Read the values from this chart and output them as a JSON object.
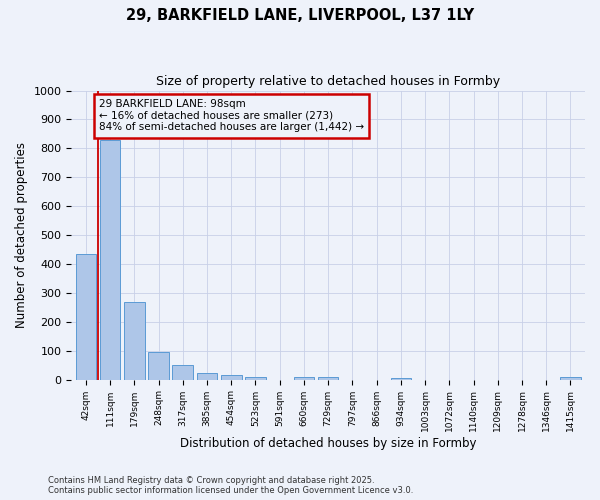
{
  "title": "29, BARKFIELD LANE, LIVERPOOL, L37 1LY",
  "subtitle": "Size of property relative to detached houses in Formby",
  "xlabel": "Distribution of detached houses by size in Formby",
  "ylabel": "Number of detached properties",
  "categories": [
    "42sqm",
    "111sqm",
    "179sqm",
    "248sqm",
    "317sqm",
    "385sqm",
    "454sqm",
    "523sqm",
    "591sqm",
    "660sqm",
    "729sqm",
    "797sqm",
    "866sqm",
    "934sqm",
    "1003sqm",
    "1072sqm",
    "1140sqm",
    "1209sqm",
    "1278sqm",
    "1346sqm",
    "1415sqm"
  ],
  "values": [
    435,
    830,
    270,
    95,
    50,
    22,
    15,
    10,
    0,
    10,
    10,
    0,
    0,
    5,
    0,
    0,
    0,
    0,
    0,
    0,
    8
  ],
  "bar_color": "#aec6e8",
  "bar_edge_color": "#5b9bd5",
  "vline_color": "#cc0000",
  "annotation_text": "29 BARKFIELD LANE: 98sqm\n← 16% of detached houses are smaller (273)\n84% of semi-detached houses are larger (1,442) →",
  "annotation_box_color": "#cc0000",
  "ylim": [
    0,
    1000
  ],
  "yticks": [
    0,
    100,
    200,
    300,
    400,
    500,
    600,
    700,
    800,
    900,
    1000
  ],
  "background_color": "#eef2fa",
  "grid_color": "#c8d0e8",
  "footer_line1": "Contains HM Land Registry data © Crown copyright and database right 2025.",
  "footer_line2": "Contains public sector information licensed under the Open Government Licence v3.0."
}
